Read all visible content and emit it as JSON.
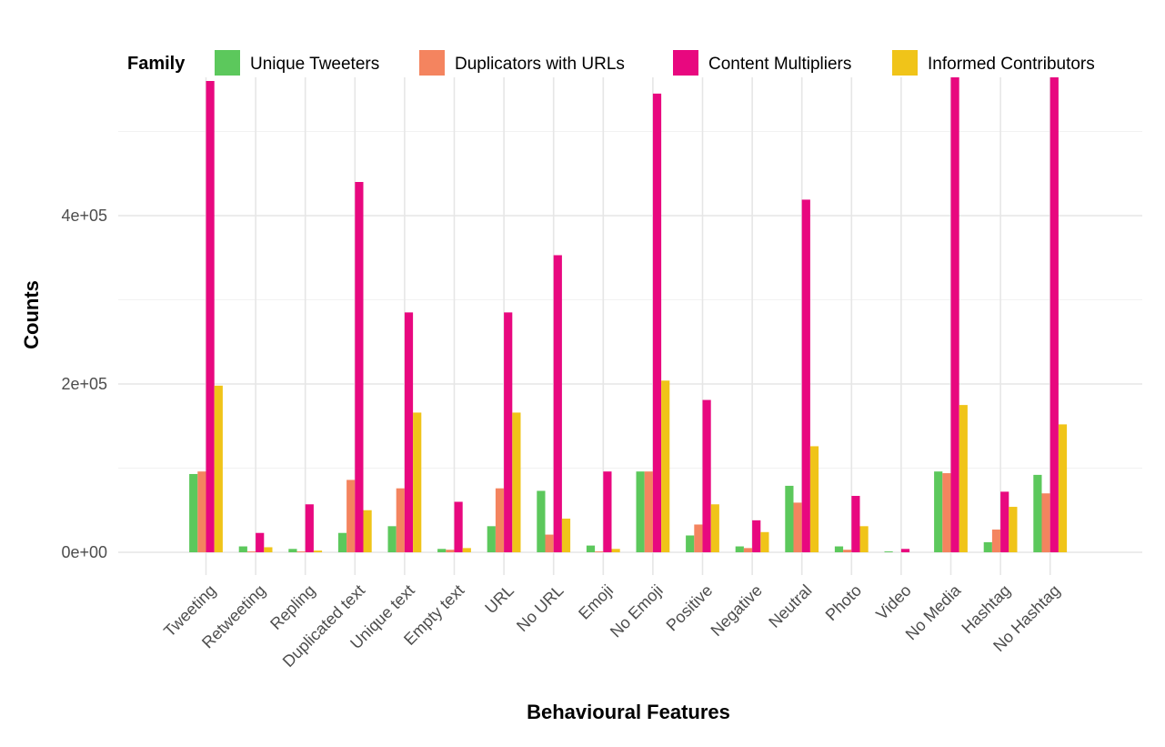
{
  "chart_data": {
    "type": "bar",
    "title": "",
    "xlabel": "Behavioural Features",
    "ylabel": "Counts",
    "ylim": [
      -30000,
      580000
    ],
    "y_ticks": [
      0,
      200000,
      400000
    ],
    "y_tick_labels": [
      "0e+00",
      "2e+05",
      "4e+05"
    ],
    "grid": true,
    "legend_title": "Family",
    "legend_position": "top",
    "categories": [
      "Tweeting",
      "Retweeting",
      "Repling",
      "Duplicated text",
      "Unique text",
      "Empty text",
      "URL",
      "No URL",
      "Emoji",
      "No Emoji",
      "Positive",
      "Negative",
      "Neutral",
      "Photo",
      "Video",
      "No Media",
      "Hashtag",
      "No Hashtag"
    ],
    "series": [
      {
        "name": "Unique Tweeters",
        "color": "#5cc85c",
        "values": [
          93000,
          7000,
          4000,
          23000,
          31000,
          4000,
          31000,
          73000,
          8000,
          96000,
          20000,
          7000,
          79000,
          7000,
          1000,
          96000,
          12000,
          92000
        ]
      },
      {
        "name": "Duplicators with URLs",
        "color": "#f4845f",
        "values": [
          96000,
          1000,
          1000,
          86000,
          76000,
          3000,
          76000,
          21000,
          1000,
          96000,
          33000,
          5000,
          59000,
          3000,
          0,
          94000,
          27000,
          70000
        ]
      },
      {
        "name": "Content Multipliers",
        "color": "#e8087f",
        "values": [
          560000,
          23000,
          57000,
          440000,
          285000,
          60000,
          285000,
          353000,
          96000,
          545000,
          181000,
          38000,
          419000,
          67000,
          4000,
          570000,
          72000,
          570000
        ]
      },
      {
        "name": "Informed Contributors",
        "color": "#f0c419",
        "values": [
          198000,
          6000,
          2000,
          50000,
          166000,
          5000,
          166000,
          40000,
          4000,
          204000,
          57000,
          24000,
          126000,
          31000,
          0,
          175000,
          54000,
          152000
        ]
      }
    ]
  }
}
